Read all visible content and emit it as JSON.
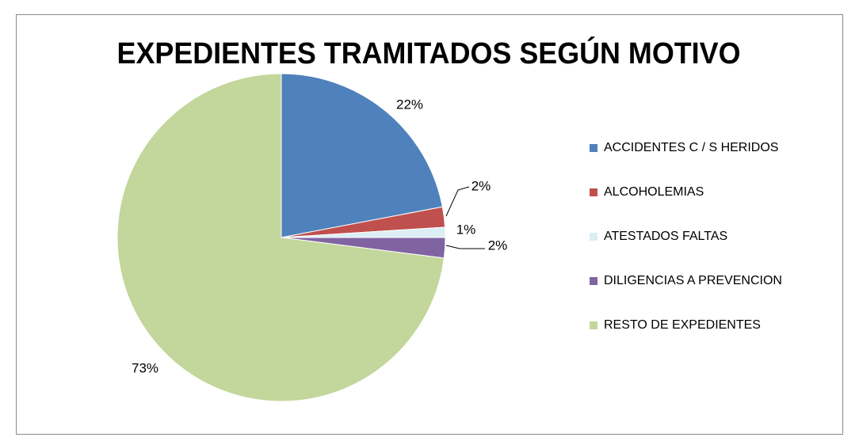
{
  "chart_data": {
    "type": "pie",
    "title": "EXPEDIENTES TRAMITADOS SEGÚN MOTIVO",
    "categories": [
      "ACCIDENTES C / S HERIDOS",
      "ALCOHOLEMIAS",
      "ATESTADOS FALTAS",
      "DILIGENCIAS A PREVENCION",
      "RESTO DE EXPEDIENTES"
    ],
    "values": [
      22,
      2,
      1,
      2,
      73
    ],
    "value_labels": [
      "22%",
      "2%",
      "1%",
      "2%",
      "73%"
    ],
    "colors": [
      "#4f81bd",
      "#c0504d",
      "#dbeef4",
      "#8064a2",
      "#c3d69b"
    ],
    "legend": "right"
  }
}
